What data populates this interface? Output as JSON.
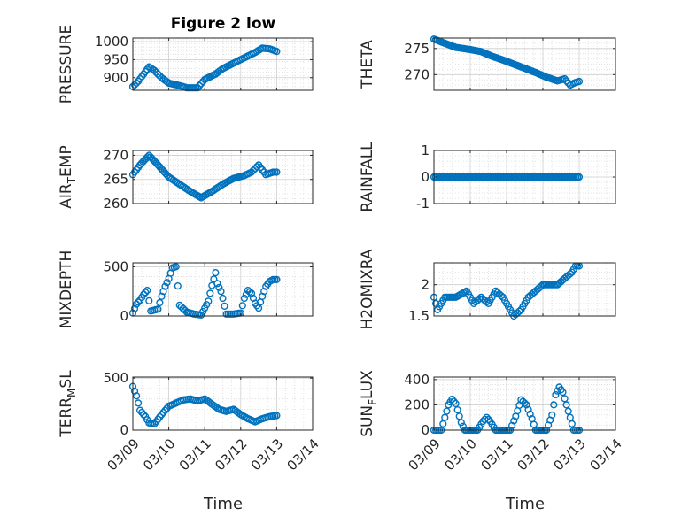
{
  "figure": {
    "title": "Figure 2 low"
  },
  "style": {
    "marker_color": "#0072BD",
    "axes_color": "#262626",
    "grid_color": "#dcdcdc"
  },
  "chart_data": [
    {
      "id": "pressure",
      "type": "scatter",
      "ylabel": "PRESSURE",
      "xlim": [
        0,
        5
      ],
      "ylim": [
        865,
        1010
      ],
      "yticks": [
        900,
        950,
        1000
      ],
      "grid": true,
      "xticks": [
        0,
        1,
        2,
        3,
        4,
        5
      ],
      "xticklabels": [
        "03/09",
        "03/10",
        "03/11",
        "03/12",
        "03/13",
        "03/14"
      ],
      "show_xticklabels": false,
      "curve": [
        [
          0.0,
          875
        ],
        [
          0.15,
          890
        ],
        [
          0.3,
          910
        ],
        [
          0.45,
          930
        ],
        [
          0.6,
          920
        ],
        [
          0.8,
          900
        ],
        [
          1.0,
          885
        ],
        [
          1.3,
          878
        ],
        [
          1.5,
          872
        ],
        [
          1.8,
          872
        ],
        [
          2.0,
          895
        ],
        [
          2.3,
          910
        ],
        [
          2.5,
          925
        ],
        [
          2.8,
          940
        ],
        [
          3.0,
          950
        ],
        [
          3.2,
          960
        ],
        [
          3.4,
          970
        ],
        [
          3.6,
          982
        ],
        [
          3.8,
          980
        ],
        [
          4.0,
          973
        ]
      ]
    },
    {
      "id": "theta",
      "type": "scatter",
      "ylabel": "THETA",
      "xlim": [
        0,
        5
      ],
      "ylim": [
        267,
        277
      ],
      "yticks": [
        270,
        275
      ],
      "grid": true,
      "xticks": [
        0,
        1,
        2,
        3,
        4,
        5
      ],
      "xticklabels": [
        "03/09",
        "03/10",
        "03/11",
        "03/12",
        "03/13",
        "03/14"
      ],
      "show_xticklabels": false,
      "curve": [
        [
          0.0,
          276.8
        ],
        [
          0.3,
          276.0
        ],
        [
          0.6,
          275.2
        ],
        [
          1.0,
          274.8
        ],
        [
          1.3,
          274.4
        ],
        [
          1.6,
          273.5
        ],
        [
          1.9,
          272.8
        ],
        [
          2.2,
          272.0
        ],
        [
          2.5,
          271.2
        ],
        [
          2.8,
          270.4
        ],
        [
          3.1,
          269.5
        ],
        [
          3.4,
          268.8
        ],
        [
          3.6,
          269.2
        ],
        [
          3.75,
          268.0
        ],
        [
          3.9,
          268.5
        ],
        [
          4.0,
          268.7
        ]
      ]
    },
    {
      "id": "air_temp",
      "type": "scatter",
      "ylabel": "AIR_TEMP",
      "ylabel_main": "AIR",
      "ylabel_sub": "T",
      "ylabel_rest": "EMP",
      "xlim": [
        0,
        5
      ],
      "ylim": [
        260,
        271
      ],
      "yticks": [
        260,
        265,
        270
      ],
      "grid": true,
      "xticks": [
        0,
        1,
        2,
        3,
        4,
        5
      ],
      "xticklabels": [
        "03/09",
        "03/10",
        "03/11",
        "03/12",
        "03/13",
        "03/14"
      ],
      "show_xticklabels": false,
      "curve": [
        [
          0.0,
          266
        ],
        [
          0.2,
          268
        ],
        [
          0.45,
          270
        ],
        [
          0.7,
          268
        ],
        [
          1.0,
          265.5
        ],
        [
          1.3,
          264
        ],
        [
          1.6,
          262.5
        ],
        [
          1.9,
          261.2
        ],
        [
          2.2,
          262.5
        ],
        [
          2.5,
          264
        ],
        [
          2.8,
          265.2
        ],
        [
          3.1,
          265.8
        ],
        [
          3.3,
          266.5
        ],
        [
          3.5,
          268
        ],
        [
          3.7,
          266
        ],
        [
          3.9,
          266.5
        ],
        [
          4.0,
          266.5
        ]
      ]
    },
    {
      "id": "rainfall",
      "type": "scatter",
      "ylabel": "RAINFALL",
      "xlim": [
        0,
        5
      ],
      "ylim": [
        -1,
        1
      ],
      "yticks": [
        -1,
        0,
        1
      ],
      "grid": true,
      "xticks": [
        0,
        1,
        2,
        3,
        4,
        5
      ],
      "xticklabels": [
        "03/09",
        "03/10",
        "03/11",
        "03/12",
        "03/13",
        "03/14"
      ],
      "show_xticklabels": false,
      "curve": [
        [
          0.0,
          0
        ],
        [
          4.0,
          0
        ]
      ]
    },
    {
      "id": "mixdepth",
      "type": "scatter",
      "ylabel": "MIXDEPTH",
      "xlim": [
        0,
        5
      ],
      "ylim": [
        0,
        540
      ],
      "yticks": [
        0,
        500
      ],
      "grid": true,
      "xticks": [
        0,
        1,
        2,
        3,
        4,
        5
      ],
      "xticklabels": [
        "03/09",
        "03/10",
        "03/11",
        "03/12",
        "03/13",
        "03/14"
      ],
      "show_xticklabels": false,
      "curve": [
        [
          0.0,
          30
        ],
        [
          0.1,
          120
        ],
        [
          0.2,
          160
        ],
        [
          0.3,
          220
        ],
        [
          0.4,
          260
        ],
        [
          0.5,
          50
        ],
        [
          0.7,
          70
        ],
        [
          0.8,
          200
        ],
        [
          0.9,
          300
        ],
        [
          1.0,
          380
        ],
        [
          1.1,
          490
        ],
        [
          1.2,
          500
        ],
        [
          1.3,
          110
        ],
        [
          1.5,
          40
        ],
        [
          1.7,
          20
        ],
        [
          1.9,
          10
        ],
        [
          2.0,
          80
        ],
        [
          2.1,
          150
        ],
        [
          2.2,
          310
        ],
        [
          2.3,
          440
        ],
        [
          2.35,
          330
        ],
        [
          2.45,
          250
        ],
        [
          2.5,
          180
        ],
        [
          2.6,
          20
        ],
        [
          2.8,
          20
        ],
        [
          3.0,
          30
        ],
        [
          3.1,
          180
        ],
        [
          3.2,
          260
        ],
        [
          3.3,
          230
        ],
        [
          3.4,
          130
        ],
        [
          3.5,
          80
        ],
        [
          3.6,
          200
        ],
        [
          3.7,
          300
        ],
        [
          3.8,
          350
        ],
        [
          3.9,
          370
        ],
        [
          4.0,
          370
        ]
      ]
    },
    {
      "id": "h2omixra",
      "type": "scatter",
      "ylabel": "H2OMIXRA",
      "xlim": [
        0,
        5
      ],
      "ylim": [
        1.5,
        2.35
      ],
      "yticks": [
        1.5,
        2
      ],
      "grid": true,
      "xticks": [
        0,
        1,
        2,
        3,
        4,
        5
      ],
      "xticklabels": [
        "03/09",
        "03/10",
        "03/11",
        "03/12",
        "03/13",
        "03/14"
      ],
      "show_xticklabels": false,
      "curve": [
        [
          0.0,
          1.8
        ],
        [
          0.1,
          1.6
        ],
        [
          0.2,
          1.7
        ],
        [
          0.3,
          1.8
        ],
        [
          0.6,
          1.8
        ],
        [
          0.9,
          1.9
        ],
        [
          1.1,
          1.7
        ],
        [
          1.3,
          1.8
        ],
        [
          1.5,
          1.7
        ],
        [
          1.7,
          1.9
        ],
        [
          1.9,
          1.8
        ],
        [
          2.1,
          1.6
        ],
        [
          2.2,
          1.5
        ],
        [
          2.4,
          1.6
        ],
        [
          2.6,
          1.8
        ],
        [
          2.8,
          1.9
        ],
        [
          3.0,
          2.0
        ],
        [
          3.4,
          2.0
        ],
        [
          3.6,
          2.1
        ],
        [
          3.8,
          2.2
        ],
        [
          3.9,
          2.3
        ],
        [
          4.0,
          2.3
        ]
      ]
    },
    {
      "id": "terr_msl",
      "type": "scatter",
      "ylabel": "TERR_MSL",
      "ylabel_main": "TERR",
      "ylabel_sub": "M",
      "ylabel_rest": "SL",
      "xlim": [
        0,
        5
      ],
      "ylim": [
        0,
        510
      ],
      "yticks": [
        0,
        500
      ],
      "grid": true,
      "xticks": [
        0,
        1,
        2,
        3,
        4,
        5
      ],
      "xticklabels": [
        "03/09",
        "03/10",
        "03/11",
        "03/12",
        "03/13",
        "03/14"
      ],
      "show_xticklabels": true,
      "curve": [
        [
          0.0,
          420
        ],
        [
          0.1,
          330
        ],
        [
          0.2,
          190
        ],
        [
          0.35,
          130
        ],
        [
          0.45,
          70
        ],
        [
          0.6,
          60
        ],
        [
          0.8,
          150
        ],
        [
          1.0,
          230
        ],
        [
          1.2,
          260
        ],
        [
          1.4,
          290
        ],
        [
          1.6,
          300
        ],
        [
          1.8,
          280
        ],
        [
          2.0,
          300
        ],
        [
          2.2,
          250
        ],
        [
          2.4,
          200
        ],
        [
          2.6,
          180
        ],
        [
          2.8,
          200
        ],
        [
          3.0,
          150
        ],
        [
          3.2,
          110
        ],
        [
          3.4,
          80
        ],
        [
          3.6,
          110
        ],
        [
          3.8,
          130
        ],
        [
          4.0,
          140
        ]
      ]
    },
    {
      "id": "sun_flux",
      "type": "scatter",
      "ylabel": "SUN_FLUX",
      "ylabel_main": "SUN",
      "ylabel_sub": "F",
      "ylabel_rest": "LUX",
      "xlim": [
        0,
        5
      ],
      "ylim": [
        0,
        420
      ],
      "yticks": [
        0,
        200,
        400
      ],
      "grid": true,
      "xticks": [
        0,
        1,
        2,
        3,
        4,
        5
      ],
      "xticklabels": [
        "03/09",
        "03/10",
        "03/11",
        "03/12",
        "03/13",
        "03/14"
      ],
      "show_xticklabels": true,
      "curve": [
        [
          0.0,
          0
        ],
        [
          0.2,
          0
        ],
        [
          0.3,
          100
        ],
        [
          0.4,
          200
        ],
        [
          0.5,
          245
        ],
        [
          0.6,
          210
        ],
        [
          0.75,
          60
        ],
        [
          0.85,
          0
        ],
        [
          1.2,
          0
        ],
        [
          1.35,
          70
        ],
        [
          1.45,
          100
        ],
        [
          1.55,
          70
        ],
        [
          1.7,
          0
        ],
        [
          2.1,
          0
        ],
        [
          2.25,
          110
        ],
        [
          2.4,
          240
        ],
        [
          2.55,
          200
        ],
        [
          2.7,
          90
        ],
        [
          2.8,
          0
        ],
        [
          3.1,
          0
        ],
        [
          3.25,
          120
        ],
        [
          3.35,
          280
        ],
        [
          3.45,
          340
        ],
        [
          3.55,
          300
        ],
        [
          3.7,
          150
        ],
        [
          3.85,
          0
        ],
        [
          4.0,
          0
        ]
      ]
    }
  ],
  "x_label": "Time"
}
